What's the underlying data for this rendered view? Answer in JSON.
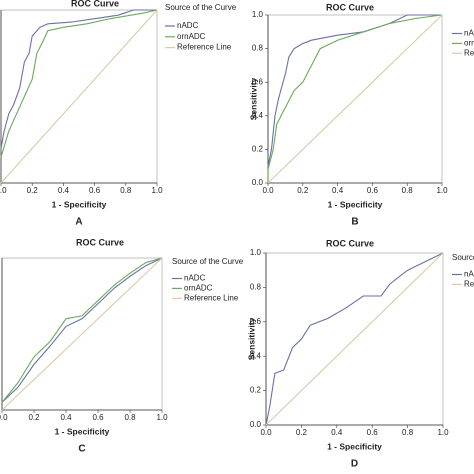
{
  "chart_data": [
    {
      "type": "line",
      "title": "ROC Curve",
      "xlabel": "1 - Specificity",
      "panel_label": "A",
      "legend_title": "Source of the Curve",
      "xlim": [
        0,
        1
      ],
      "ylim": [
        0,
        1
      ],
      "xticks": [
        {
          "value": 0,
          "label": "0.0"
        },
        0.2,
        0.4,
        0.6,
        0.8,
        {
          "value": 1,
          "label": "1.0"
        }
      ],
      "series": [
        {
          "name": "nADC",
          "color": "#6b6fa8",
          "x": [
            0,
            0.02,
            0.05,
            0.08,
            0.12,
            0.15,
            0.18,
            0.2,
            0.25,
            0.3,
            0.45,
            0.6,
            0.75,
            0.85,
            1
          ],
          "values": [
            0.2,
            0.3,
            0.4,
            0.45,
            0.55,
            0.7,
            0.75,
            0.85,
            0.9,
            0.92,
            0.93,
            0.95,
            0.97,
            1,
            1
          ]
        },
        {
          "name": "ornADC",
          "color": "#6aaa5a",
          "x": [
            0,
            0.05,
            0.1,
            0.15,
            0.2,
            0.23,
            0.27,
            0.3,
            0.4,
            0.55,
            0.7,
            0.9,
            1
          ],
          "values": [
            0.15,
            0.3,
            0.4,
            0.5,
            0.6,
            0.75,
            0.82,
            0.88,
            0.9,
            0.92,
            0.95,
            0.98,
            1
          ]
        },
        {
          "name": "Reference Line",
          "color": "#d8cba5",
          "x": [
            0,
            1
          ],
          "values": [
            0,
            1
          ]
        }
      ]
    },
    {
      "type": "line",
      "title": "ROC Curve",
      "xlabel": "1 - Specificity",
      "ylabel": "Sensitivity",
      "panel_label": "B",
      "xlim": [
        0,
        1
      ],
      "ylim": [
        0,
        1
      ],
      "xticks": [
        {
          "value": 0,
          "label": "0.0"
        },
        0.2,
        0.4,
        0.6,
        0.8,
        {
          "value": 1,
          "label": "1.0"
        }
      ],
      "yticks": [
        {
          "value": 0,
          "label": "0.0"
        },
        0.2,
        0.4,
        0.6,
        0.8,
        {
          "value": 1,
          "label": "1.0"
        }
      ],
      "series": [
        {
          "name": "nADC",
          "color": "#6b6fa8",
          "x": [
            0,
            0,
            0.02,
            0.04,
            0.06,
            0.1,
            0.12,
            0.15,
            0.2,
            0.25,
            0.4,
            0.55,
            0.7,
            0.8,
            1
          ],
          "values": [
            0,
            0.1,
            0.2,
            0.4,
            0.5,
            0.65,
            0.75,
            0.8,
            0.83,
            0.85,
            0.88,
            0.9,
            0.95,
            1,
            1
          ]
        },
        {
          "name": "ornADC",
          "color": "#6aaa5a",
          "x": [
            0,
            0,
            0.03,
            0.05,
            0.1,
            0.15,
            0.2,
            0.25,
            0.3,
            0.4,
            0.55,
            0.7,
            0.85,
            1
          ],
          "values": [
            0,
            0.08,
            0.2,
            0.35,
            0.45,
            0.55,
            0.6,
            0.7,
            0.8,
            0.85,
            0.9,
            0.95,
            0.98,
            1
          ]
        },
        {
          "name": "Reference Line",
          "color": "#d8cba5",
          "x": [
            0,
            1
          ],
          "values": [
            0,
            1
          ]
        }
      ]
    },
    {
      "type": "line",
      "title": "ROC Curve",
      "xlabel": "1 - Specificity",
      "panel_label": "C",
      "legend_title": "Source of the Curve",
      "xlim": [
        0,
        1
      ],
      "ylim": [
        0,
        1
      ],
      "xticks": [
        {
          "value": 0,
          "label": "0.0"
        },
        0.2,
        0.4,
        0.6,
        0.8,
        {
          "value": 1,
          "label": "1.0"
        }
      ],
      "series": [
        {
          "name": "nADC",
          "color": "#6b6fa8",
          "x": [
            0,
            0.1,
            0.2,
            0.3,
            0.4,
            0.5,
            0.6,
            0.7,
            0.8,
            0.9,
            1
          ],
          "values": [
            0.05,
            0.15,
            0.3,
            0.42,
            0.55,
            0.6,
            0.7,
            0.8,
            0.88,
            0.95,
            1
          ]
        },
        {
          "name": "ornADC",
          "color": "#6aaa5a",
          "x": [
            0,
            0.1,
            0.2,
            0.3,
            0.4,
            0.5,
            0.6,
            0.7,
            0.8,
            0.9,
            1
          ],
          "values": [
            0.05,
            0.18,
            0.35,
            0.45,
            0.6,
            0.62,
            0.72,
            0.82,
            0.9,
            0.97,
            1
          ]
        },
        {
          "name": "Reference Line",
          "color": "#d8cba5",
          "x": [
            0,
            1
          ],
          "values": [
            0,
            1
          ]
        }
      ]
    },
    {
      "type": "line",
      "title": "ROC Curve",
      "xlabel": "1 - Specificity",
      "ylabel": "Sensitivity",
      "panel_label": "D",
      "legend_title": "Source of the Curve",
      "xlim": [
        0,
        1
      ],
      "ylim": [
        0,
        1
      ],
      "xticks": [
        {
          "value": 0,
          "label": "0.0"
        },
        0.2,
        0.4,
        0.6,
        0.8,
        {
          "value": 1,
          "label": "1.0"
        }
      ],
      "yticks": [
        {
          "value": 0,
          "label": "0.0"
        },
        0.2,
        0.4,
        0.6,
        0.8,
        {
          "value": 1,
          "label": "1.0"
        }
      ],
      "series": [
        {
          "name": "nADC",
          "color": "#6b6fa8",
          "x": [
            0,
            0.02,
            0.05,
            0.1,
            0.15,
            0.2,
            0.25,
            0.35,
            0.45,
            0.55,
            0.65,
            0.7,
            0.8,
            0.9,
            1
          ],
          "values": [
            0,
            0.1,
            0.3,
            0.32,
            0.45,
            0.5,
            0.58,
            0.62,
            0.68,
            0.75,
            0.75,
            0.82,
            0.9,
            0.95,
            1
          ]
        },
        {
          "name": "Reference Line",
          "color": "#d8cba5",
          "x": [
            0,
            1
          ],
          "values": [
            0,
            1
          ]
        }
      ]
    }
  ]
}
